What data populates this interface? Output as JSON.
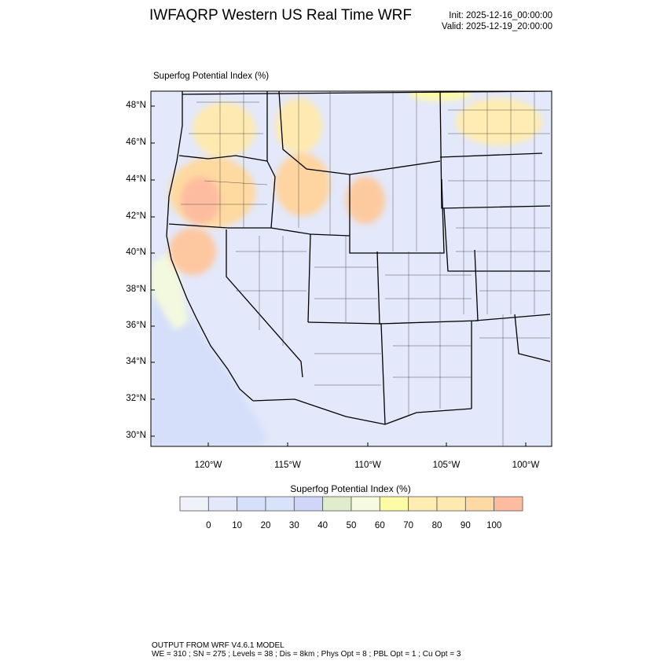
{
  "header": {
    "title": "IWFAQRP Western US Real Time WRF",
    "init": "Init: 2025-12-16_00:00:00",
    "valid": "Valid: 2025-12-19_20:00:00"
  },
  "map": {
    "field_label": "Superfog Potential Index   (%)",
    "lat_ticks": [
      "48°N",
      "46°N",
      "44°N",
      "42°N",
      "40°N",
      "38°N",
      "36°N",
      "34°N",
      "32°N",
      "30°N"
    ],
    "lon_ticks": [
      "120°W",
      "115°W",
      "110°W",
      "105°W",
      "100°W"
    ],
    "background_color": "#e3e8fa",
    "high_regions": [
      "Oregon",
      "Washington",
      "Idaho",
      "Northern California",
      "Western Montana",
      "Southern Wyoming",
      "North Dakota"
    ]
  },
  "colorbar": {
    "title": "Superfog Potential Index  (%)",
    "labels": [
      "0",
      "10",
      "20",
      "30",
      "40",
      "50",
      "60",
      "70",
      "80",
      "90",
      "100"
    ],
    "colors": [
      "#eff2f8",
      "#e3e8fb",
      "#d6e0fb",
      "#d8e2fb",
      "#cfd6f8",
      "#e0edcb",
      "#f5fae0",
      "#fefba6",
      "#feecb2",
      "#feeab0",
      "#fdd9a3",
      "#fdbca0"
    ]
  },
  "footer": {
    "line1": "OUTPUT FROM WRF V4.6.1 MODEL",
    "line2": "WE = 310 ; SN = 275 ; Levels = 38 ; Dis = 8km ; Phys Opt = 8 ; PBL Opt = 1 ; Cu Opt = 3"
  }
}
